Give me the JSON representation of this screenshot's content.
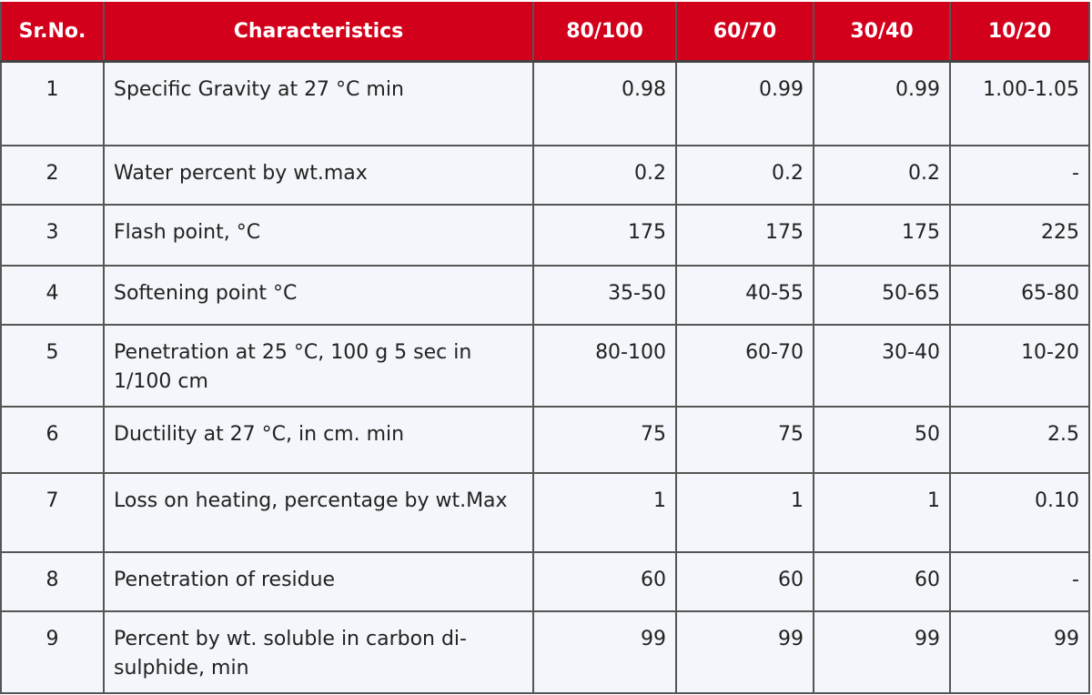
{
  "table": {
    "header": [
      "Sr.No.",
      "Characteristics",
      "80/100",
      "60/70",
      "30/40",
      "10/20"
    ],
    "rows": [
      [
        "1",
        "Specific Gravity at 27 °C min",
        "0.98",
        "0.99",
        "0.99",
        "1.00-1.05"
      ],
      [
        "2",
        "Water percent by wt.max",
        "0.2",
        "0.2",
        "0.2",
        "-"
      ],
      [
        "3",
        "Flash point, °C",
        "175",
        "175",
        "175",
        "225"
      ],
      [
        "4",
        "Softening point °C",
        "35-50",
        "40-55",
        "50-65",
        "65-80"
      ],
      [
        "5",
        "Penetration at 25 °C, 100 g 5 sec in 1/100 cm",
        "80-100",
        "60-70",
        "30-40",
        "10-20"
      ],
      [
        "6",
        "Ductility at 27 °C, in cm. min",
        "75",
        "75",
        "50",
        "2.5"
      ],
      [
        "7",
        "Loss on heating, percentage by wt.Max",
        "1",
        "1",
        "1",
        "0.10"
      ],
      [
        "8",
        "Penetration of residue",
        "60",
        "60",
        "60",
        "-"
      ],
      [
        "9",
        "Percent by wt. soluble in carbon di- sulphide, min",
        "99",
        "99",
        "99",
        "99"
      ]
    ]
  }
}
